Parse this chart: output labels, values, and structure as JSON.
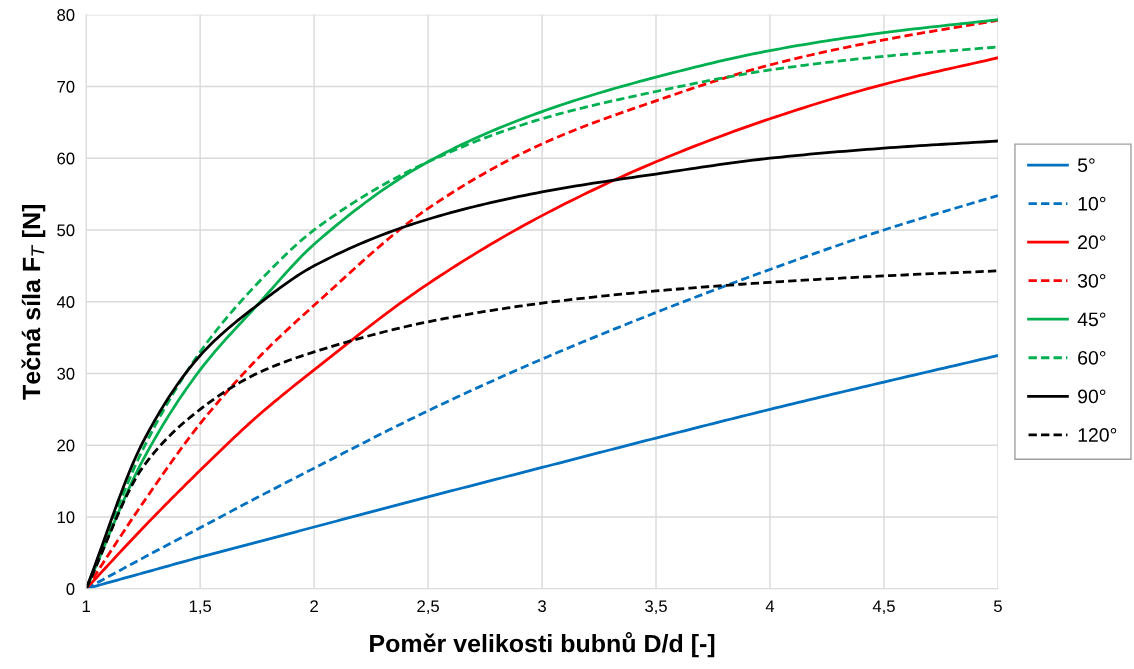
{
  "chart_data": {
    "type": "line",
    "xlabel": "Poměr velikosti bubnů D/d [-]",
    "ylabel": "Tečná síla F$_{T}$ [N]",
    "x": [
      1,
      1.25,
      1.5,
      1.75,
      2,
      2.5,
      3,
      3.5,
      4,
      4.5,
      5
    ],
    "xlim": [
      1,
      5
    ],
    "xticks": [
      1,
      {
        "value": 1.5,
        "label": "1,5"
      },
      2,
      {
        "value": 2.5,
        "label": "2,5"
      },
      3,
      {
        "value": 3.5,
        "label": "3,5"
      },
      4,
      {
        "value": 4.5,
        "label": "4,5"
      },
      5
    ],
    "ylim": [
      0,
      80
    ],
    "yticks": [
      0,
      10,
      20,
      30,
      40,
      50,
      60,
      70,
      80
    ],
    "grid": true,
    "legend": "right",
    "marker": "none",
    "series": [
      {
        "name": "5°",
        "color": "#0070c0",
        "line_style": "solid",
        "values": [
          0,
          2.2,
          4.4,
          6.5,
          8.6,
          12.8,
          16.9,
          21,
          25,
          28.8,
          32.5
        ]
      },
      {
        "name": "10°",
        "color": "#0070c0",
        "line_style": "dashed",
        "values": [
          0,
          4.3,
          8.5,
          12.7,
          16.8,
          24.8,
          32,
          38.5,
          44.5,
          50,
          54.8
        ]
      },
      {
        "name": "20°",
        "color": "#ff0000",
        "line_style": "solid",
        "values": [
          0,
          8.5,
          16.5,
          24,
          30.5,
          42.5,
          52,
          59.5,
          65.5,
          70.3,
          74
        ]
      },
      {
        "name": "30°",
        "color": "#ff0000",
        "line_style": "dashed",
        "values": [
          0,
          12,
          23,
          32,
          39.5,
          53,
          62,
          68,
          73,
          76.5,
          79.2
        ]
      },
      {
        "name": "45°",
        "color": "#00b050",
        "line_style": "solid",
        "values": [
          0,
          18,
          30.5,
          39.5,
          48,
          59.5,
          66.5,
          71.3,
          75,
          77.5,
          79.3
        ]
      },
      {
        "name": "60°",
        "color": "#00b050",
        "line_style": "dashed",
        "values": [
          0,
          19.5,
          33,
          42.5,
          50,
          59.5,
          65.5,
          69.3,
          72.3,
          74.2,
          75.5
        ]
      },
      {
        "name": "90°",
        "color": "#000000",
        "line_style": "solid",
        "values": [
          0,
          20.5,
          32.5,
          39.5,
          45,
          51.5,
          55.3,
          57.8,
          60,
          61.4,
          62.4
        ]
      },
      {
        "name": "120°",
        "color": "#000000",
        "line_style": "dashed",
        "values": [
          0,
          17,
          25,
          30,
          33,
          37.2,
          39.8,
          41.5,
          42.7,
          43.6,
          44.3
        ]
      }
    ]
  }
}
